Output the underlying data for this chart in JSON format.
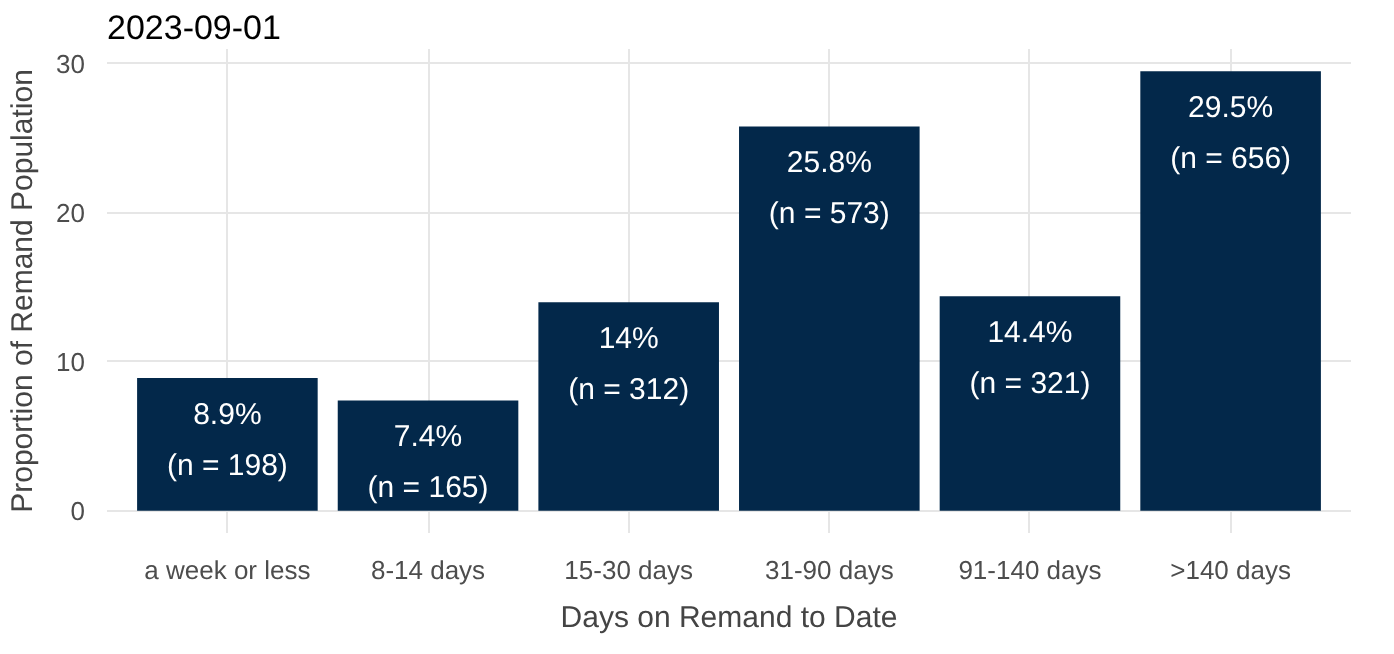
{
  "chart_data": {
    "type": "bar",
    "title": "2023-09-01",
    "xlabel": "Days on Remand to Date",
    "ylabel": "Proportion of Remand Population",
    "categories": [
      "a week or less",
      "8-14 days",
      "15-30 days",
      "31-90 days",
      "91-140 days",
      ">140 days"
    ],
    "values": [
      8.9,
      7.4,
      14,
      25.8,
      14.4,
      29.5
    ],
    "value_labels": [
      "8.9%\n(n = 198)",
      "7.4%\n(n = 165)",
      "14%\n(n = 312)",
      "25.8%\n(n = 573)",
      "14.4%\n(n = 321)",
      "29.5%\n(n = 656)"
    ],
    "color": "#03284a",
    "ylim": [
      -1.5,
      31
    ],
    "yticks": [
      0,
      10,
      20,
      30
    ],
    "grid": true
  }
}
